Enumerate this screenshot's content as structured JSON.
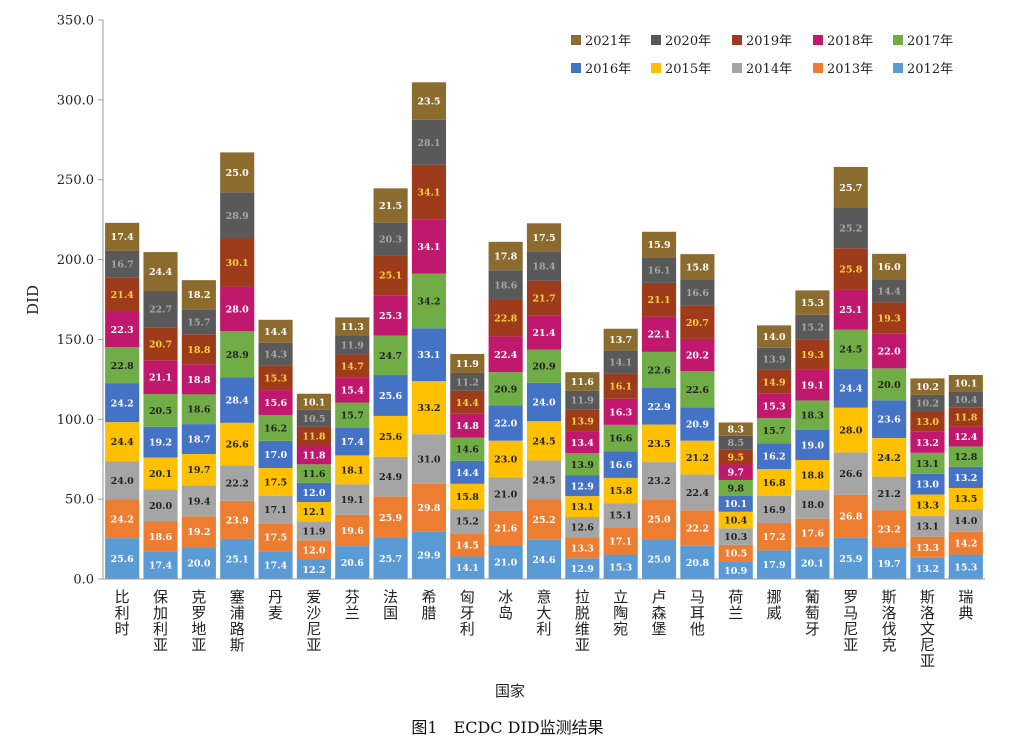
{
  "caption": "图1　ECDC DID监测结果",
  "chart_data": {
    "type": "bar",
    "stacked": true,
    "xlabel": "国家",
    "ylabel": "DID",
    "ylim": [
      0,
      350
    ],
    "yticks": [
      "0.0",
      "50.0",
      "100.0",
      "150.0",
      "200.0",
      "250.0",
      "300.0",
      "350.0"
    ],
    "grid": false,
    "legend_position": "top-right",
    "categories": [
      "比利时",
      "保加利亚",
      "克罗地亚",
      "塞浦路斯",
      "丹麦",
      "爱沙尼亚",
      "芬兰",
      "法国",
      "希腊",
      "匈牙利",
      "冰岛",
      "意大利",
      "拉脱维亚",
      "立陶宛",
      "卢森堡",
      "马耳他",
      "荷兰",
      "挪威",
      "葡萄牙",
      "罗马尼亚",
      "斯洛伐克",
      "斯洛文尼亚",
      "瑞典"
    ],
    "series": [
      {
        "name": "2012年",
        "color": "#5B9BD5",
        "label_color": "#ffffff",
        "values": [
          25.6,
          17.4,
          20.0,
          25.1,
          17.4,
          12.2,
          20.6,
          25.7,
          29.9,
          14.1,
          21.0,
          24.6,
          12.9,
          15.3,
          25.0,
          20.8,
          10.9,
          17.9,
          20.1,
          25.9,
          19.7,
          13.2,
          15.3
        ]
      },
      {
        "name": "2013年",
        "color": "#ED7D31",
        "label_color": "#ffffff",
        "values": [
          24.2,
          18.6,
          19.2,
          23.9,
          17.5,
          12.0,
          19.6,
          25.9,
          29.8,
          14.5,
          21.6,
          25.2,
          13.3,
          17.1,
          25.0,
          22.2,
          10.5,
          17.2,
          17.6,
          26.8,
          23.2,
          13.3,
          14.2
        ]
      },
      {
        "name": "2014年",
        "color": "#A5A5A5",
        "label_color": "#222222",
        "values": [
          24.0,
          20.0,
          19.4,
          22.2,
          17.1,
          11.9,
          19.1,
          24.9,
          31.0,
          15.2,
          21.0,
          24.5,
          12.6,
          15.1,
          23.2,
          22.4,
          10.3,
          16.9,
          18.0,
          26.6,
          21.2,
          13.1,
          14.0
        ]
      },
      {
        "name": "2015年",
        "color": "#FFC000",
        "label_color": "#222222",
        "values": [
          24.4,
          20.1,
          19.7,
          26.6,
          17.5,
          12.1,
          18.1,
          25.6,
          33.2,
          15.8,
          23.0,
          24.5,
          13.1,
          15.8,
          23.5,
          21.2,
          10.4,
          16.8,
          18.8,
          28.0,
          24.2,
          13.3,
          13.5
        ]
      },
      {
        "name": "2016年",
        "color": "#4472C4",
        "label_color": "#ffffff",
        "values": [
          24.2,
          19.2,
          18.7,
          28.4,
          17.0,
          12.0,
          17.4,
          25.6,
          33.1,
          14.4,
          22.0,
          24.0,
          12.9,
          16.6,
          22.9,
          20.9,
          10.1,
          16.2,
          19.0,
          24.4,
          23.6,
          13.0,
          13.2
        ]
      },
      {
        "name": "2017年",
        "color": "#70AD47",
        "label_color": "#222222",
        "values": [
          22.8,
          20.5,
          18.6,
          28.9,
          16.2,
          11.6,
          15.7,
          24.7,
          34.2,
          14.6,
          20.9,
          20.9,
          13.9,
          16.6,
          22.6,
          22.6,
          9.8,
          15.7,
          18.3,
          24.5,
          20.0,
          13.1,
          12.8
        ]
      },
      {
        "name": "2018年",
        "color": "#C0186D",
        "label_color": "#ffffff",
        "values": [
          22.3,
          21.1,
          18.8,
          28.0,
          15.6,
          11.8,
          15.4,
          25.3,
          34.1,
          14.8,
          22.4,
          21.4,
          13.4,
          16.3,
          22.1,
          20.2,
          9.7,
          15.3,
          19.1,
          25.1,
          22.0,
          13.2,
          12.4
        ]
      },
      {
        "name": "2019年",
        "color": "#9E3B1B",
        "label_color": "#FFD23F",
        "values": [
          21.4,
          20.7,
          18.8,
          30.1,
          15.3,
          11.8,
          14.7,
          25.1,
          34.1,
          14.4,
          22.8,
          21.7,
          13.9,
          16.1,
          21.1,
          20.7,
          9.5,
          14.9,
          19.3,
          25.8,
          19.3,
          13.0,
          11.8
        ]
      },
      {
        "name": "2020年",
        "color": "#595959",
        "label_color": "#A6A6A6",
        "values": [
          16.7,
          22.7,
          15.7,
          28.9,
          14.3,
          10.5,
          11.9,
          20.3,
          28.1,
          11.2,
          18.6,
          18.4,
          11.9,
          14.1,
          16.1,
          16.6,
          8.5,
          13.9,
          15.2,
          25.2,
          14.4,
          10.2,
          10.4
        ]
      },
      {
        "name": "2021年",
        "color": "#8C6B2F",
        "label_color": "#ffffff",
        "values": [
          17.4,
          24.4,
          18.2,
          25.0,
          14.4,
          10.1,
          11.3,
          21.5,
          23.5,
          11.9,
          17.8,
          17.5,
          11.6,
          13.7,
          15.9,
          15.8,
          8.3,
          14.0,
          15.3,
          25.7,
          16.0,
          10.2,
          10.1
        ]
      }
    ]
  }
}
